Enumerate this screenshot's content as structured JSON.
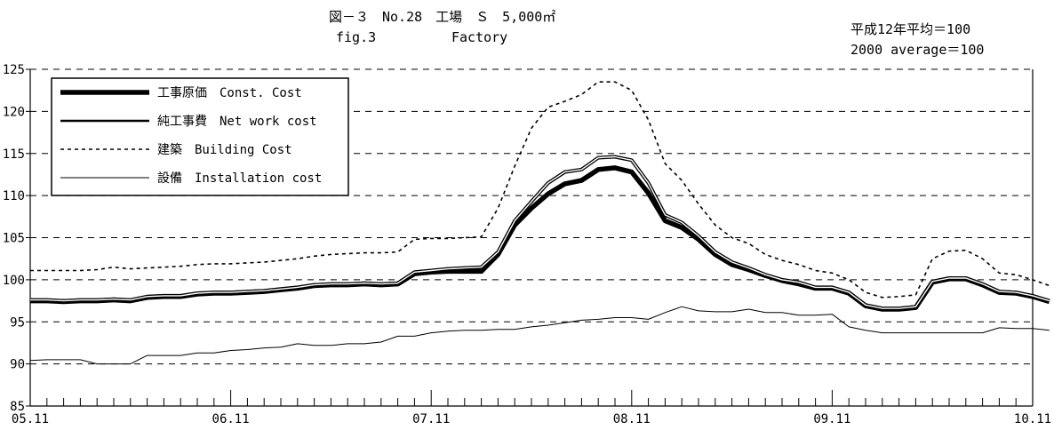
{
  "header": {
    "title_jp": "図－３　No.28　工場　Ｓ　5,000㎡",
    "title_en": "fig.3",
    "subtitle_en": "Factory",
    "base_note_jp": "平成12年平均＝100",
    "base_note_en": "2000 average＝100"
  },
  "chart_data": {
    "type": "line",
    "x_tick_labels": [
      "05.11",
      "06.11",
      "07.11",
      "08.11",
      "09.11",
      "10.11"
    ],
    "x_minor_ticks_per_year": 12,
    "y_ticks": [
      85,
      90,
      95,
      100,
      105,
      110,
      115,
      120,
      125
    ],
    "ylim": [
      85,
      125
    ],
    "grid": "horizontal dashed",
    "legend_position": "top-left",
    "series": [
      {
        "name": "工事原価　Const. Cost",
        "style": "thick",
        "color": "#000000",
        "values": [
          97.5,
          97.5,
          97.4,
          97.5,
          97.5,
          97.6,
          97.5,
          97.9,
          98.0,
          98.0,
          98.3,
          98.4,
          98.4,
          98.5,
          98.6,
          98.8,
          99.0,
          99.3,
          99.4,
          99.4,
          99.5,
          99.4,
          99.5,
          100.7,
          100.9,
          101.0,
          101.0,
          101.0,
          103.0,
          106.5,
          108.5,
          110.2,
          111.4,
          111.8,
          113.1,
          113.3,
          112.8,
          110.3,
          107.0,
          106.2,
          104.8,
          103.0,
          101.8,
          101.2,
          100.5,
          99.9,
          99.5,
          99.0,
          99.0,
          98.4,
          96.9,
          96.5,
          96.5,
          96.7,
          99.7,
          100.1,
          100.1,
          99.4,
          98.5,
          98.4,
          98.0,
          97.4
        ]
      },
      {
        "name": "純工事費　Net work cost",
        "style": "medium",
        "color": "#000000",
        "values": [
          97.6,
          97.6,
          97.5,
          97.6,
          97.6,
          97.7,
          97.6,
          98.0,
          98.1,
          98.1,
          98.4,
          98.5,
          98.5,
          98.6,
          98.7,
          98.9,
          99.1,
          99.4,
          99.5,
          99.5,
          99.6,
          99.5,
          99.6,
          100.9,
          101.1,
          101.3,
          101.4,
          101.5,
          103.3,
          107.0,
          109.3,
          111.5,
          112.8,
          113.1,
          114.5,
          114.6,
          114.2,
          111.5,
          107.7,
          106.8,
          105.2,
          103.3,
          102.1,
          101.4,
          100.6,
          100.0,
          99.7,
          99.1,
          99.1,
          98.5,
          97.0,
          96.6,
          96.6,
          96.8,
          99.8,
          100.2,
          100.2,
          99.5,
          98.6,
          98.5,
          98.1,
          97.5
        ]
      },
      {
        "name": "建築　Building Cost",
        "style": "dashed",
        "color": "#000000",
        "values": [
          101.1,
          101.1,
          101.1,
          101.1,
          101.2,
          101.5,
          101.3,
          101.4,
          101.5,
          101.6,
          101.8,
          101.9,
          101.9,
          102.0,
          102.1,
          102.3,
          102.5,
          102.8,
          103.0,
          103.1,
          103.2,
          103.2,
          103.3,
          104.8,
          104.9,
          104.9,
          105.0,
          105.1,
          108.5,
          113.5,
          118.0,
          120.5,
          121.2,
          122.0,
          123.5,
          123.5,
          122.5,
          119.0,
          113.8,
          111.8,
          109.0,
          106.5,
          105.0,
          104.3,
          103.0,
          102.3,
          101.8,
          101.1,
          100.8,
          100.0,
          98.5,
          97.9,
          98.0,
          98.2,
          102.5,
          103.4,
          103.5,
          102.5,
          100.8,
          100.6,
          100.0,
          99.3
        ]
      },
      {
        "name": "設備　Installation cost",
        "style": "thin",
        "color": "#000000",
        "values": [
          90.4,
          90.5,
          90.5,
          90.5,
          90.0,
          90.0,
          90.0,
          91.0,
          91.0,
          91.0,
          91.3,
          91.3,
          91.6,
          91.7,
          91.9,
          92.0,
          92.4,
          92.2,
          92.2,
          92.4,
          92.4,
          92.6,
          93.3,
          93.3,
          93.7,
          93.9,
          94.0,
          94.0,
          94.1,
          94.1,
          94.4,
          94.6,
          94.9,
          95.2,
          95.3,
          95.5,
          95.5,
          95.3,
          96.1,
          96.8,
          96.3,
          96.2,
          96.2,
          96.5,
          96.1,
          96.1,
          95.8,
          95.8,
          95.9,
          94.4,
          94.0,
          93.7,
          93.7,
          93.7,
          93.7,
          93.7,
          93.7,
          93.7,
          94.3,
          94.2,
          94.2,
          94.0
        ]
      }
    ]
  }
}
